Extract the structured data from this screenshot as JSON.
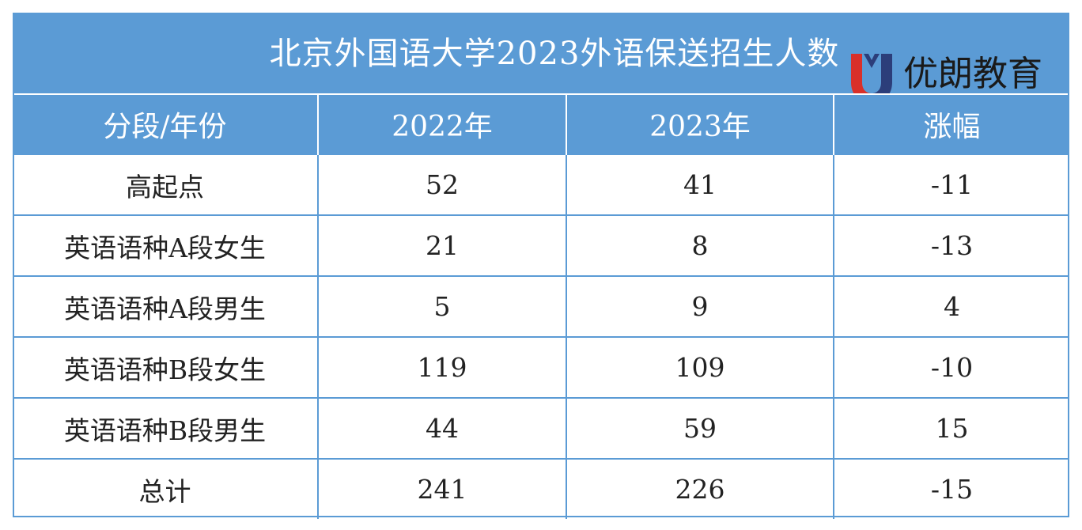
{
  "title": "北京外国语大学2023外语保送招生人数",
  "logo": {
    "text": "优朗教育",
    "colors": {
      "red": "#d9302a",
      "navy": "#2c3e7a"
    }
  },
  "colors": {
    "header_bg": "#5b9bd5",
    "header_text": "#ffffff",
    "body_text": "#222222"
  },
  "table": {
    "headers": [
      "分段/年份",
      "2022年",
      "2023年",
      "涨幅"
    ],
    "rows": [
      [
        "高起点",
        "52",
        "41",
        "-11"
      ],
      [
        "英语语种A段女生",
        "21",
        "8",
        "-13"
      ],
      [
        "英语语种A段男生",
        "5",
        "9",
        "4"
      ],
      [
        "英语语种B段女生",
        "119",
        "109",
        "-10"
      ],
      [
        "英语语种B段男生",
        "44",
        "59",
        "15"
      ],
      [
        "总计",
        "241",
        "226",
        "-15"
      ]
    ]
  }
}
